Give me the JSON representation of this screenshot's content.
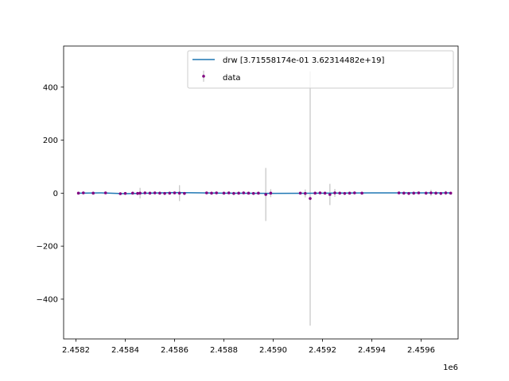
{
  "chart_data": {
    "type": "scatter",
    "title": "",
    "xlabel": "",
    "ylabel": "",
    "x_offset_label": "1e6",
    "xlim": [
      2.45815,
      2.45975
    ],
    "ylim": [
      -550,
      555
    ],
    "xticks": [
      {
        "value": 2.4582,
        "label": "2.4582"
      },
      {
        "value": 2.4584,
        "label": "2.4584"
      },
      {
        "value": 2.4586,
        "label": "2.4586"
      },
      {
        "value": 2.4588,
        "label": "2.4588"
      },
      {
        "value": 2.459,
        "label": "2.4590"
      },
      {
        "value": 2.4592,
        "label": "2.4592"
      },
      {
        "value": 2.4594,
        "label": "2.4594"
      },
      {
        "value": 2.4596,
        "label": "2.4596"
      }
    ],
    "yticks": [
      {
        "value": 400,
        "label": "400"
      },
      {
        "value": 200,
        "label": "200"
      },
      {
        "value": 0,
        "label": "0"
      },
      {
        "value": -200,
        "label": "−200"
      },
      {
        "value": -400,
        "label": "−400"
      }
    ],
    "legend": {
      "placement": "upper-right",
      "entries": [
        {
          "label": "drw [3.71558174e-01 3.62314482e+19]",
          "color": "#1f77b4",
          "kind": "line"
        },
        {
          "label": "data",
          "color": "#800080",
          "kind": "errorbar-point"
        }
      ]
    },
    "colors": {
      "model_line": "#1f77b4",
      "points": "#800080",
      "errorbars": "#c8c8c8"
    },
    "series": [
      {
        "name": "drw [3.71558174e-01 3.62314482e+19]",
        "kind": "line",
        "x": [
          2.45821,
          2.4583,
          2.4584,
          2.4586,
          2.4588,
          2.459,
          2.4592,
          2.4594,
          2.4596,
          2.45972
        ],
        "y": [
          0,
          1,
          -2,
          2,
          0,
          -1,
          0,
          1,
          1,
          1
        ]
      },
      {
        "name": "data",
        "kind": "errorbar",
        "points": [
          {
            "x": 2.45821,
            "y": 0,
            "err": 3
          },
          {
            "x": 2.45823,
            "y": 1,
            "err": 3
          },
          {
            "x": 2.45827,
            "y": 0,
            "err": 3
          },
          {
            "x": 2.45832,
            "y": 1,
            "err": 3
          },
          {
            "x": 2.45838,
            "y": -2,
            "err": 4
          },
          {
            "x": 2.4584,
            "y": -1,
            "err": 4
          },
          {
            "x": 2.45843,
            "y": 0,
            "err": 5
          },
          {
            "x": 2.45845,
            "y": -1,
            "err": 6
          },
          {
            "x": 2.45846,
            "y": 0,
            "err": 20
          },
          {
            "x": 2.45848,
            "y": 1,
            "err": 5
          },
          {
            "x": 2.4585,
            "y": 0,
            "err": 5
          },
          {
            "x": 2.45852,
            "y": 1,
            "err": 5
          },
          {
            "x": 2.45854,
            "y": 0,
            "err": 5
          },
          {
            "x": 2.45856,
            "y": -1,
            "err": 5
          },
          {
            "x": 2.45858,
            "y": 0,
            "err": 5
          },
          {
            "x": 2.4586,
            "y": 1,
            "err": 5
          },
          {
            "x": 2.45862,
            "y": 0,
            "err": 30
          },
          {
            "x": 2.45864,
            "y": -1,
            "err": 5
          },
          {
            "x": 2.45873,
            "y": 1,
            "err": 4
          },
          {
            "x": 2.45875,
            "y": 0,
            "err": 4
          },
          {
            "x": 2.45877,
            "y": 1,
            "err": 4
          },
          {
            "x": 2.4588,
            "y": 0,
            "err": 4
          },
          {
            "x": 2.45882,
            "y": 1,
            "err": 5
          },
          {
            "x": 2.45884,
            "y": -1,
            "err": 6
          },
          {
            "x": 2.45886,
            "y": 0,
            "err": 5
          },
          {
            "x": 2.45888,
            "y": 1,
            "err": 5
          },
          {
            "x": 2.4589,
            "y": 0,
            "err": 5
          },
          {
            "x": 2.45892,
            "y": -1,
            "err": 5
          },
          {
            "x": 2.45894,
            "y": 0,
            "err": 5
          },
          {
            "x": 2.45897,
            "y": -5,
            "err": 100
          },
          {
            "x": 2.45899,
            "y": 0,
            "err": 15
          },
          {
            "x": 2.45911,
            "y": 0,
            "err": 5
          },
          {
            "x": 2.45913,
            "y": -1,
            "err": 15
          },
          {
            "x": 2.45915,
            "y": -20,
            "err": 480
          },
          {
            "x": 2.45917,
            "y": 0,
            "err": 5
          },
          {
            "x": 2.45919,
            "y": 1,
            "err": 5
          },
          {
            "x": 2.45921,
            "y": 0,
            "err": 5
          },
          {
            "x": 2.45923,
            "y": -5,
            "err": 40
          },
          {
            "x": 2.45925,
            "y": 1,
            "err": 15
          },
          {
            "x": 2.45927,
            "y": 0,
            "err": 5
          },
          {
            "x": 2.45929,
            "y": -1,
            "err": 5
          },
          {
            "x": 2.45931,
            "y": 0,
            "err": 5
          },
          {
            "x": 2.45933,
            "y": 1,
            "err": 5
          },
          {
            "x": 2.45936,
            "y": 0,
            "err": 4
          },
          {
            "x": 2.45951,
            "y": 1,
            "err": 4
          },
          {
            "x": 2.45953,
            "y": 0,
            "err": 5
          },
          {
            "x": 2.45955,
            "y": -1,
            "err": 5
          },
          {
            "x": 2.45957,
            "y": 0,
            "err": 5
          },
          {
            "x": 2.45959,
            "y": 1,
            "err": 4
          },
          {
            "x": 2.45962,
            "y": 0,
            "err": 5
          },
          {
            "x": 2.45964,
            "y": 1,
            "err": 12
          },
          {
            "x": 2.45966,
            "y": 0,
            "err": 5
          },
          {
            "x": 2.45968,
            "y": -1,
            "err": 5
          },
          {
            "x": 2.4597,
            "y": 1,
            "err": 8
          },
          {
            "x": 2.45972,
            "y": 0,
            "err": 4
          }
        ]
      }
    ]
  }
}
